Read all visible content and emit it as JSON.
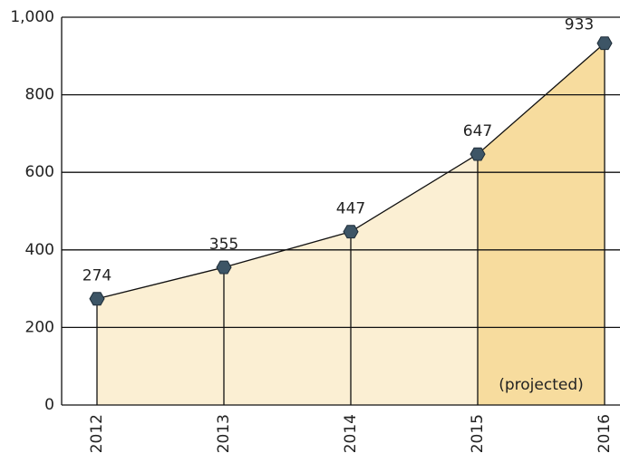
{
  "chart_data": {
    "type": "area",
    "categories": [
      "2012",
      "2013",
      "2014",
      "2015",
      "2016"
    ],
    "values": [
      274,
      355,
      447,
      647,
      933
    ],
    "color": "#fbefd3",
    "line_color": "#111111",
    "marker_color": "#3d5566",
    "highlight": {
      "from": "2015",
      "to": "2016",
      "label": "(projected)",
      "color": "#f7dc9e"
    },
    "ylim": [
      0,
      1000
    ],
    "yticks": [
      0,
      200,
      400,
      600,
      800,
      {
        "value": 1000,
        "label": "1,000"
      }
    ],
    "grid": true
  }
}
